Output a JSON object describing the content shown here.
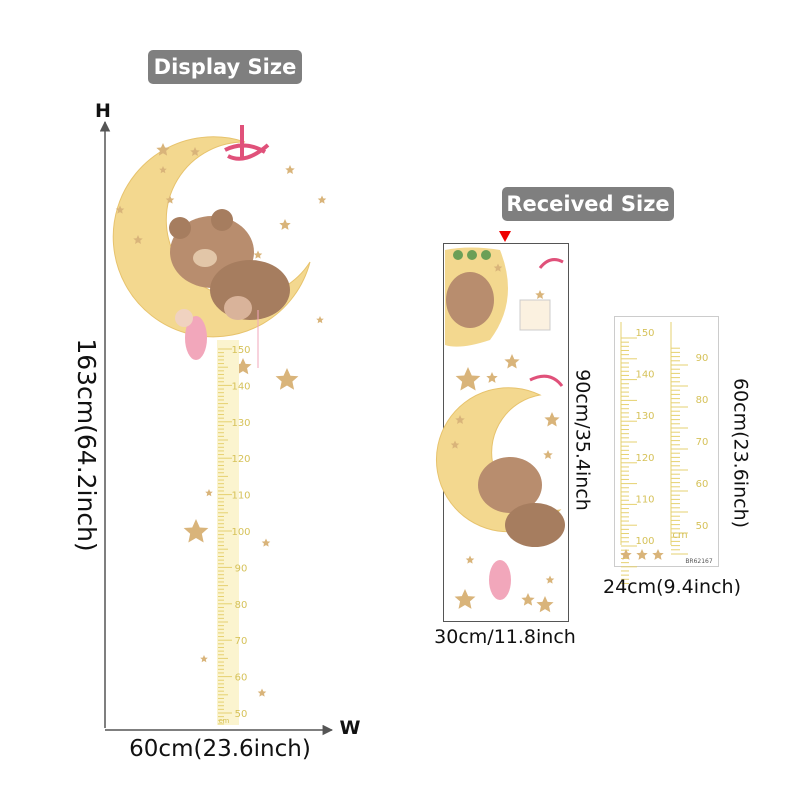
{
  "badges": {
    "display": "Display Size",
    "received": "Received Size"
  },
  "display": {
    "height_axis": "H",
    "width_axis": "W",
    "height": "163cm(64.2inch)",
    "width": "60cm(23.6inch)",
    "ruler": {
      "labels": [
        150,
        140,
        130,
        120,
        110,
        100,
        90,
        80,
        70,
        60,
        50
      ],
      "unit": "cm"
    }
  },
  "received": {
    "large_sheet": {
      "height": "90cm/35.4inch",
      "width": "30cm/11.8inch"
    },
    "small_sheet": {
      "height": "60cm(23.6inch)",
      "width": "24cm(9.4inch)",
      "left_ruler": [
        150,
        140,
        130,
        120,
        110,
        100
      ],
      "right_ruler": [
        90,
        80,
        70,
        60,
        50
      ],
      "unit": "cm",
      "code": "BR62167"
    }
  }
}
